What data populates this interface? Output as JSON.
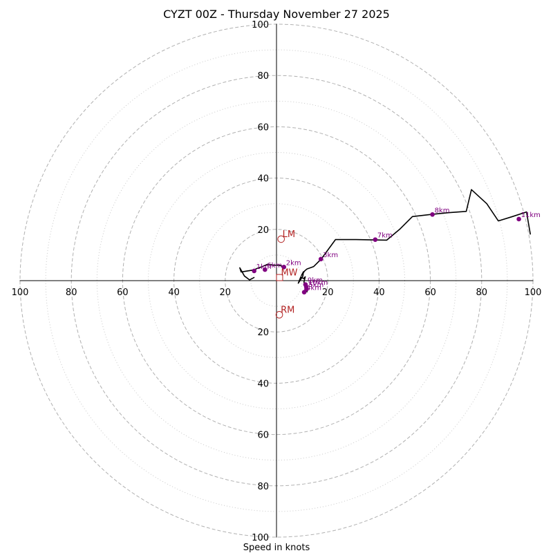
{
  "chart_data": {
    "type": "line",
    "subtype": "hodograph",
    "title": "CYZT 00Z - Thursday November 27 2025",
    "xlabel": "Speed in knots",
    "ylabel": "",
    "range": [
      -100,
      100
    ],
    "ring_major": [
      20,
      40,
      60,
      80,
      100
    ],
    "ring_minor": [
      10,
      30,
      50,
      70,
      90
    ],
    "x_ticks": [
      {
        "value": -100,
        "label": "100"
      },
      {
        "value": -80,
        "label": "80"
      },
      {
        "value": -60,
        "label": "60"
      },
      {
        "value": -40,
        "label": "40"
      },
      {
        "value": -20,
        "label": "20"
      },
      {
        "value": 20,
        "label": "20"
      },
      {
        "value": 40,
        "label": "40"
      },
      {
        "value": 60,
        "label": "60"
      },
      {
        "value": 80,
        "label": "80"
      },
      {
        "value": 100,
        "label": "100"
      }
    ],
    "y_ticks": [
      {
        "value": 100,
        "label": "100"
      },
      {
        "value": 80,
        "label": "80"
      },
      {
        "value": 60,
        "label": "60"
      },
      {
        "value": 40,
        "label": "40"
      },
      {
        "value": 20,
        "label": "20"
      },
      {
        "value": -20,
        "label": "20"
      },
      {
        "value": -40,
        "label": "40"
      },
      {
        "value": -60,
        "label": "60"
      },
      {
        "value": -80,
        "label": "80"
      },
      {
        "value": -100,
        "label": "100"
      }
    ],
    "trace": {
      "name": "wind profile",
      "color": "#000000",
      "u": [
        12,
        11.5,
        11,
        10.7,
        11.2,
        10.5,
        9.5,
        8.5,
        10.3,
        10.5,
        9.7,
        11,
        11.8,
        14.5,
        17.5,
        23,
        31,
        43,
        48,
        53,
        60,
        67,
        74,
        76,
        82,
        86.5,
        92,
        97.5,
        99
      ],
      "v": [
        -4.5,
        -3,
        -1.5,
        -0.5,
        1.5,
        0.8,
        1.5,
        -1,
        1.8,
        3.5,
        2,
        3.8,
        4.5,
        5.5,
        8.5,
        16,
        16,
        15.8,
        20,
        25,
        25.8,
        26.5,
        27,
        35.5,
        30,
        23.3,
        25,
        26.8,
        18
      ]
    },
    "trace_low": {
      "name": "low-level wind profile",
      "color": "#000000",
      "u": [
        2.9,
        1,
        -1,
        -3.5,
        -5.5,
        -7.5,
        -8.7,
        -13.8,
        -14.3,
        -12.5,
        -10.5,
        -8.6
      ],
      "v": [
        5.5,
        6,
        6,
        6.4,
        5.5,
        4.8,
        4.2,
        3.4,
        5,
        1.8,
        0.3,
        1.3
      ]
    },
    "height_markers": [
      {
        "label": "1km",
        "u": -8.7,
        "v": 3.8
      },
      {
        "label": "6km",
        "u": -4.5,
        "v": 4.3
      },
      {
        "label": "2km",
        "u": 2.9,
        "v": 5.3
      },
      {
        "label": "3km",
        "u": 17.3,
        "v": 8.4
      },
      {
        "label": "4km",
        "u": 10.8,
        "v": -4.5
      },
      {
        "label": "5km",
        "u": 11.7,
        "v": -3.3
      },
      {
        "label": "9km",
        "u": 11.3,
        "v": -1.5
      },
      {
        "label": "10km",
        "u": 11.6,
        "v": -2.4
      },
      {
        "label": "7km",
        "u": 38.5,
        "v": 16
      },
      {
        "label": "8km",
        "u": 60.8,
        "v": 25.8
      },
      {
        "label": "11km",
        "u": 94.5,
        "v": 24
      }
    ],
    "motion_markers": [
      {
        "label": "LM",
        "u": 1.8,
        "v": 16.2,
        "shape": "circle"
      },
      {
        "label": "MW",
        "u": 1.2,
        "v": 1.2,
        "shape": "square"
      },
      {
        "label": "RM",
        "u": 1.1,
        "v": -13.3,
        "shape": "circle"
      }
    ],
    "colors": {
      "height": "#800080",
      "motion": "#b22222",
      "grid": "#b0b0b0"
    }
  }
}
